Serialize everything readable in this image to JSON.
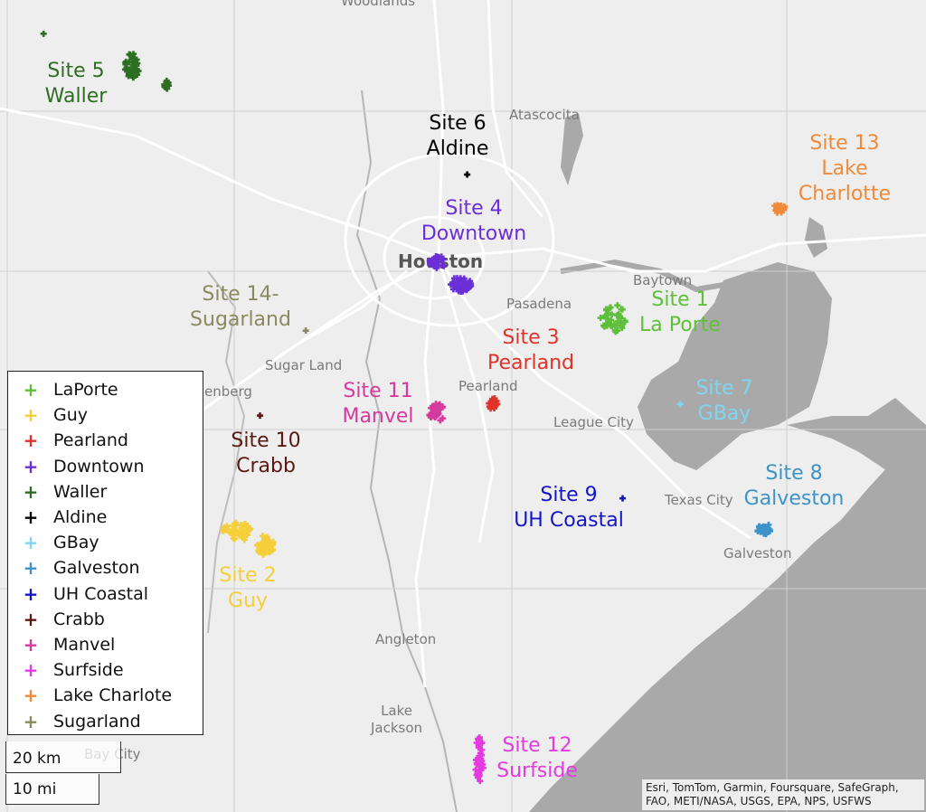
{
  "place_labels": [
    {
      "name": "Woodlands",
      "type": "town"
    },
    {
      "name": "Atascocita",
      "type": "town"
    },
    {
      "name": "Houston",
      "type": "city"
    },
    {
      "name": "Baytown",
      "type": "town"
    },
    {
      "name": "Pasadena",
      "type": "town"
    },
    {
      "name": "Sugar Land",
      "type": "town"
    },
    {
      "name": "Pearland",
      "type": "town"
    },
    {
      "name": "League City",
      "type": "town"
    },
    {
      "name": "Texas City",
      "type": "town"
    },
    {
      "name": "Galveston",
      "type": "town"
    },
    {
      "name": "Angleton",
      "type": "town"
    },
    {
      "name": "Lake\nJackson",
      "type": "town"
    },
    {
      "name": "Bay City",
      "type": "town"
    },
    {
      "name": "enberg",
      "type": "town"
    }
  ],
  "sites": [
    {
      "label_lines": [
        "Site 1",
        "La Porte"
      ],
      "legend": "LaPorte",
      "color": "#5ec03a"
    },
    {
      "label_lines": [
        "Site 2",
        "Guy"
      ],
      "legend": "Guy",
      "color": "#f5cf3a"
    },
    {
      "label_lines": [
        "Site 3",
        "Pearland"
      ],
      "legend": "Pearland",
      "color": "#e0332a"
    },
    {
      "label_lines": [
        "Site 4",
        "Downtown"
      ],
      "legend": "Downtown",
      "color": "#6b2fd6"
    },
    {
      "label_lines": [
        "Site 5",
        "Waller"
      ],
      "legend": "Waller",
      "color": "#2e6e22"
    },
    {
      "label_lines": [
        "Site 6",
        "Aldine"
      ],
      "legend": "Aldine",
      "color": "#000000"
    },
    {
      "label_lines": [
        "Site 7",
        "GBay"
      ],
      "legend": "GBay",
      "color": "#7fd6f2"
    },
    {
      "label_lines": [
        "Site 8",
        "Galveston"
      ],
      "legend": "Galveston",
      "color": "#3d93c7"
    },
    {
      "label_lines": [
        "Site 9",
        "UH Coastal"
      ],
      "legend": "UH Coastal",
      "color": "#1414c8"
    },
    {
      "label_lines": [
        "Site 10",
        "Crabb"
      ],
      "legend": "Crabb",
      "color": "#5a1a12"
    },
    {
      "label_lines": [
        "Site 11",
        "Manvel"
      ],
      "legend": "Manvel",
      "color": "#d63a9e"
    },
    {
      "label_lines": [
        "Site 12",
        "Surfside"
      ],
      "legend": "Surfside",
      "color": "#e43ae0"
    },
    {
      "label_lines": [
        "Site 13",
        "Lake",
        "Charlotte"
      ],
      "legend": "Lake Charlote",
      "color": "#ee8a3a"
    },
    {
      "label_lines": [
        "Site 14-",
        "Sugarland"
      ],
      "legend": "Sugarland",
      "color": "#8a8a60"
    }
  ],
  "scale_bar": {
    "km": "20 km",
    "mi": "10 mi"
  },
  "attribution": "Esri, TomTom, Garmin, Foursquare, SafeGraph, FAO, METI/NASA, USGS, EPA, NPS, USFWS",
  "colors": {
    "land": "#eeeeee",
    "water": "#a9a9a9",
    "road": "#ffffff",
    "grid": "#d0d0d0"
  }
}
